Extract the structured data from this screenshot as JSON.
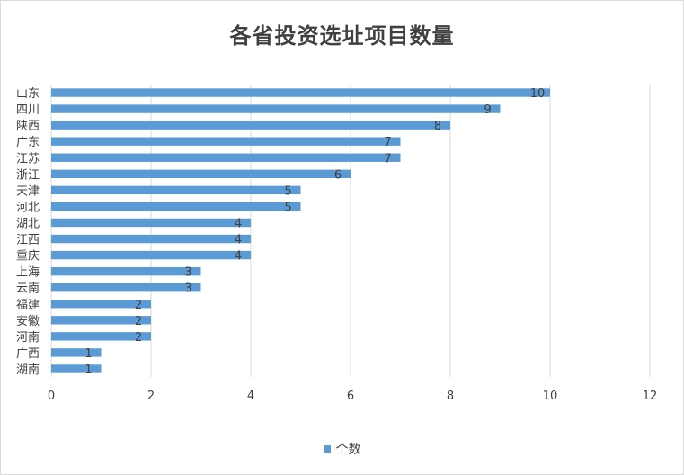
{
  "chart_data": {
    "type": "bar",
    "orientation": "horizontal",
    "title": "各省投资选址项目数量",
    "categories": [
      "山东",
      "四川",
      "陕西",
      "广东",
      "江苏",
      "浙江",
      "天津",
      "河北",
      "湖北",
      "江西",
      "重庆",
      "上海",
      "云南",
      "福建",
      "安徽",
      "河南",
      "广西",
      "湖南"
    ],
    "series": [
      {
        "name": "个数",
        "values": [
          10,
          9,
          8,
          7,
          7,
          6,
          5,
          5,
          4,
          4,
          4,
          3,
          3,
          2,
          2,
          2,
          1,
          1
        ]
      }
    ],
    "xlim": [
      0,
      12
    ],
    "xticks": [
      0,
      2,
      4,
      6,
      8,
      10,
      12
    ],
    "grid": "vertical",
    "legend": "bottom",
    "data_labels": true,
    "colors": {
      "bar": "#5b9bd5",
      "grid": "#d9d9d9",
      "text": "#404040"
    }
  }
}
